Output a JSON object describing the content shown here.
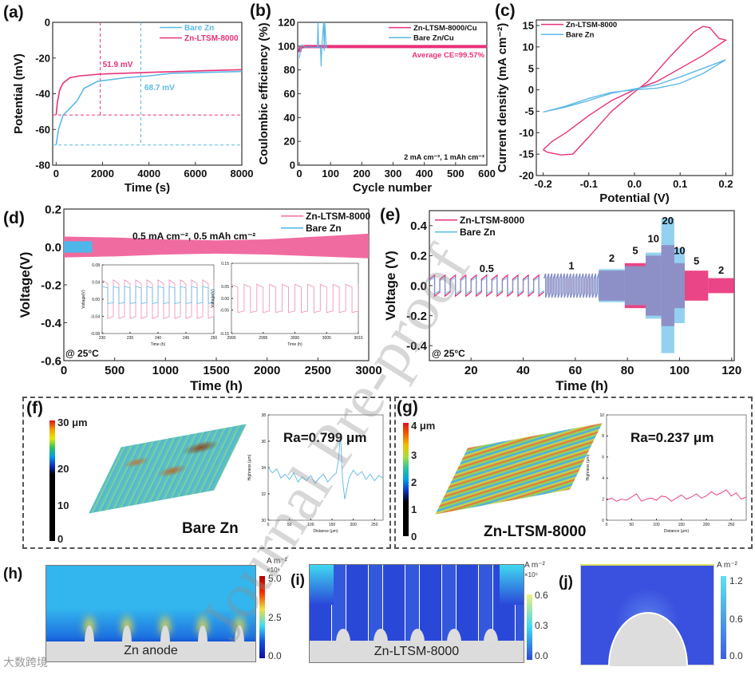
{
  "panel_labels": {
    "a": "(a)",
    "b": "(b)",
    "c": "(c)",
    "d": "(d)",
    "e": "(e)",
    "f": "(f)",
    "g": "(g)",
    "h": "(h)",
    "i": "(i)",
    "j": "(j)"
  },
  "colors": {
    "ltsm": "#e8317a",
    "bare": "#5bb8e8",
    "overlap": "#8c8ee6"
  },
  "watermark": "Journal Pre-proof",
  "corner_logo": "大数跨境",
  "chart_data": [
    {
      "panel": "a",
      "type": "line",
      "title": "",
      "xlabel": "Time (s)",
      "ylabel": "Potential (mV)",
      "xlim": [
        -150,
        8000
      ],
      "ylim": [
        -80,
        0
      ],
      "xticks": [
        0,
        2000,
        4000,
        6000,
        8000
      ],
      "yticks": [
        0,
        -20,
        -40,
        -60,
        -80
      ],
      "legend": "top-right",
      "series": [
        {
          "name": "Bare Zn",
          "color": "#5bb8e8",
          "x": [
            0,
            100,
            300,
            600,
            900,
            1200,
            1800,
            3000,
            4000,
            5000,
            8000
          ],
          "y": [
            -68.7,
            -60,
            -52,
            -48,
            -44,
            -37,
            -33,
            -31,
            -30,
            -28.5,
            -27.5
          ]
        },
        {
          "name": "Zn-LTSM-8000",
          "color": "#e8317a",
          "x": [
            0,
            50,
            150,
            300,
            600,
            1000,
            1900,
            4000,
            8000
          ],
          "y": [
            -51.9,
            -45,
            -38,
            -34,
            -31,
            -30,
            -29,
            -28,
            -26.5
          ]
        }
      ],
      "annotations": [
        {
          "text": "51.9 mV",
          "color": "#e8317a",
          "x": 1900,
          "y": -25
        },
        {
          "text": "68.7 mV",
          "color": "#5bb8e8",
          "x": 3700,
          "y": -38
        }
      ],
      "guides": [
        {
          "color": "#e8317a",
          "hy": -51.9,
          "vx": 1900
        },
        {
          "color": "#5bb8e8",
          "hy": -68.7,
          "vx": 3650
        }
      ]
    },
    {
      "panel": "b",
      "type": "line",
      "xlabel": "Cycle number",
      "ylabel": "Coulombic efficiency (%)",
      "xlim": [
        -5,
        600
      ],
      "ylim": [
        0,
        120
      ],
      "xticks": [
        0,
        100,
        200,
        300,
        400,
        500,
        600
      ],
      "yticks": [
        0,
        20,
        40,
        60,
        80,
        100,
        120
      ],
      "legend": "top-right",
      "series": [
        {
          "name": "Zn-LTSM-8000/Cu",
          "color": "#e8317a",
          "x": [
            1,
            3,
            5,
            10,
            20,
            50,
            100,
            200,
            300,
            400,
            500,
            600
          ],
          "y": [
            95,
            98,
            99.2,
            99.5,
            99.6,
            99.6,
            99.6,
            99.6,
            99.6,
            99.6,
            99.6,
            99.6
          ]
        },
        {
          "name": "Bare Zn/Cu",
          "color": "#5bb8e8",
          "x": [
            1,
            3,
            5,
            8,
            12,
            20,
            30,
            45,
            58,
            60,
            62,
            68,
            70,
            72,
            78,
            80,
            82,
            86,
            90
          ],
          "y": [
            90,
            96,
            99,
            101,
            100,
            99,
            99.5,
            99,
            99,
            120,
            99,
            99,
            83,
            99,
            120,
            96,
            120,
            99,
            99
          ]
        }
      ],
      "annotations": [
        {
          "text": "Average CE=99.57%",
          "color": "#e8317a"
        },
        {
          "text": "2 mA cm⁻², 1 mAh cm⁻²",
          "color": "#111"
        }
      ]
    },
    {
      "panel": "c",
      "type": "line",
      "xlabel": "Potential (V)",
      "ylabel": "Current density (mA cm⁻²)",
      "xlim": [
        -0.215,
        0.215
      ],
      "ylim": [
        -20,
        16.3
      ],
      "xticks": [
        -0.2,
        -0.1,
        0.0,
        0.1,
        0.2
      ],
      "xtick_labels": [
        "-0.2",
        "-0.1",
        "0.0",
        "0.1",
        "0.2"
      ],
      "yticks": [
        15,
        10,
        5,
        0,
        -5,
        -10,
        -15,
        -20
      ],
      "legend": "top-left",
      "series": [
        {
          "name": "Zn-LTSM-8000",
          "color": "#e8317a",
          "x": [
            -0.2,
            -0.19,
            -0.16,
            -0.135,
            -0.1,
            -0.05,
            0,
            0.03,
            0.08,
            0.13,
            0.15,
            0.165,
            0.185,
            0.2,
            0.15,
            0.1,
            0.05,
            0,
            -0.05,
            -0.1,
            -0.15,
            -0.18,
            -0.2
          ],
          "y": [
            -14,
            -14.6,
            -15.2,
            -15,
            -11,
            -5,
            -0.5,
            2,
            8,
            13.5,
            14.8,
            14.5,
            12,
            11.6,
            8,
            5,
            2,
            0,
            -2.5,
            -6,
            -10,
            -12,
            -14
          ]
        },
        {
          "name": "Bare Zn",
          "color": "#5bb8e8",
          "x": [
            -0.2,
            -0.15,
            -0.1,
            -0.05,
            0,
            0.05,
            0.1,
            0.15,
            0.2,
            0.15,
            0.1,
            0.05,
            0,
            -0.05,
            -0.1,
            -0.15,
            -0.2
          ],
          "y": [
            -5.2,
            -3.8,
            -2,
            -0.6,
            0,
            0.4,
            1.5,
            3.8,
            7,
            5,
            3,
            1.2,
            0.2,
            -0.8,
            -2.5,
            -4,
            -5.2
          ]
        }
      ]
    },
    {
      "panel": "d",
      "type": "area",
      "xlabel": "Time (h)",
      "ylabel": "Voltage(V)",
      "xlim": [
        0,
        3000
      ],
      "ylim": [
        -0.6,
        0.2
      ],
      "xticks": [
        0,
        500,
        1000,
        1500,
        2000,
        2500,
        3000
      ],
      "yticks": [
        0.2,
        0.0,
        -0.2,
        -0.4,
        -0.6
      ],
      "ytick_labels": [
        "0.2",
        "0.0",
        "-0.2",
        "-0.4",
        "-0.6"
      ],
      "legend": "top-right",
      "series": [
        {
          "name": "Zn-LTSM-8000",
          "color": "#f06ba0",
          "x": [
            0,
            500,
            1000,
            1500,
            2000,
            2500,
            3000
          ],
          "upper": [
            0.055,
            0.05,
            0.04,
            0.035,
            0.04,
            0.055,
            0.07
          ],
          "lower": [
            -0.055,
            -0.05,
            -0.04,
            -0.035,
            -0.04,
            -0.05,
            -0.06
          ]
        },
        {
          "name": "Bare Zn",
          "color": "#4fb6ea",
          "x": [
            0,
            280
          ],
          "upper": [
            0.03,
            0.03
          ],
          "lower": [
            -0.03,
            -0.03
          ]
        }
      ],
      "annotations": [
        {
          "text": "0.5 mA cm⁻², 0.5 mAh cm⁻²"
        },
        {
          "text": "@ 25°C"
        }
      ],
      "insets": [
        {
          "xlabel": "Time (h)",
          "ylabel": "Voltage(V)",
          "xlim": [
            230,
            250
          ],
          "ylim": [
            -0.08,
            0.08
          ],
          "xticks": [
            230,
            235,
            240,
            245,
            250
          ],
          "yticks": [
            0.08,
            0.04,
            0.0,
            -0.04,
            -0.08
          ],
          "ytick_labels": [
            "0.08",
            "0.04",
            "0.00",
            "-0.04",
            "-0.08"
          ],
          "series": [
            {
              "name": "Zn-LTSM-8000",
              "color": "#f08ab0",
              "amp": 0.045,
              "period": 2
            },
            {
              "name": "Bare Zn",
              "color": "#5bb8e8",
              "amp": 0.02,
              "period": 2
            }
          ]
        },
        {
          "xlabel": "Time (h)",
          "ylabel": "Voltage(V)",
          "xlim": [
            2990,
            3010
          ],
          "ylim": [
            -0.15,
            0.15
          ],
          "xticks": [
            2990,
            2995,
            3000,
            3005,
            3010
          ],
          "yticks": [
            0.15,
            0.05,
            0.0,
            -0.05,
            -0.15
          ],
          "ytick_labels": [
            "0.15",
            "0.05",
            "0.00",
            "-0.05",
            "-0.15"
          ],
          "series": [
            {
              "name": "Zn-LTSM-8000",
              "color": "#f08ab0",
              "amp": 0.06,
              "period": 2
            }
          ]
        }
      ]
    },
    {
      "panel": "e",
      "type": "line",
      "xlabel": "Time (h)",
      "ylabel": "Voltage (V)",
      "xlim": [
        4,
        121
      ],
      "ylim": [
        -0.5,
        0.5
      ],
      "xticks": [
        20,
        40,
        60,
        80,
        100,
        120
      ],
      "yticks": [
        0.4,
        0.2,
        0.0,
        -0.2,
        -0.4
      ],
      "ytick_labels": [
        "0.4",
        "0.2",
        "0.0",
        "-0.2",
        "-0.4"
      ],
      "legend": "top-left",
      "series_names": [
        "Zn-LTSM-8000",
        "Bare Zn"
      ],
      "segments": [
        {
          "rate": "0.5",
          "start": 4,
          "end": 48,
          "ltsm": 0.07,
          "bare": 0.055,
          "label_y": 0.09
        },
        {
          "rate": "1",
          "start": 48,
          "end": 69,
          "ltsm": 0.08,
          "bare": 0.08,
          "label_y": 0.11
        },
        {
          "rate": "2",
          "start": 69,
          "end": 79,
          "ltsm": 0.1,
          "bare": 0.11,
          "label_y": 0.16
        },
        {
          "rate": "5",
          "start": 79,
          "end": 87,
          "ltsm": 0.15,
          "bare": 0.13,
          "label_y": 0.21
        },
        {
          "rate": "10",
          "start": 87,
          "end": 93,
          "ltsm": 0.2,
          "bare": 0.22,
          "label_y": 0.29
        },
        {
          "rate": "20",
          "start": 93,
          "end": 98,
          "ltsm": 0.27,
          "bare": 0.45,
          "label_y": 0.41
        },
        {
          "rate": "10",
          "start": 98,
          "end": 102,
          "ltsm": 0.15,
          "bare": 0.25,
          "label_y": 0.21
        },
        {
          "rate": "5",
          "start": 102,
          "end": 111,
          "ltsm": 0.1,
          "bare": 0.0,
          "label_y": 0.14
        },
        {
          "rate": "2",
          "start": 111,
          "end": 121,
          "ltsm": 0.05,
          "bare": 0.0,
          "label_y": 0.08
        }
      ],
      "annotations": [
        {
          "text": "@ 25°C"
        }
      ]
    },
    {
      "panel": "f",
      "type": "line",
      "title": "Bare Zn",
      "xlabel": "Distance (μm)",
      "ylabel": "Highness (μm)",
      "xlim": [
        0,
        270
      ],
      "ylim": [
        30,
        38
      ],
      "xticks": [
        0,
        50,
        100,
        150,
        200,
        250
      ],
      "yticks": [
        30,
        32,
        34,
        36,
        38
      ],
      "ra": "Ra=0.799 μm",
      "series": [
        {
          "name": "profile",
          "color": "#5bb8e8",
          "x": [
            0,
            10,
            20,
            30,
            40,
            50,
            60,
            70,
            80,
            90,
            100,
            110,
            120,
            130,
            140,
            150,
            160,
            165,
            170,
            175,
            180,
            190,
            200,
            210,
            220,
            230,
            240,
            250,
            260,
            270
          ],
          "y": [
            34,
            33.6,
            33.9,
            33.2,
            33.5,
            33.1,
            33.6,
            32.9,
            33.3,
            33,
            33.4,
            32.8,
            33.2,
            33.5,
            32.9,
            33.3,
            33.6,
            34.5,
            36.5,
            33,
            31.6,
            33.2,
            33.8,
            33.4,
            33.7,
            33.1,
            33.5,
            33,
            33.4,
            33.2
          ]
        }
      ],
      "colorbar": {
        "unit": "30 μm",
        "labels": [
          "20",
          "10",
          "0"
        ]
      }
    },
    {
      "panel": "g",
      "type": "line",
      "title": "Zn-LTSM-8000",
      "xlabel": "Distance (μm)",
      "ylabel": "Highness (μm)",
      "xlim": [
        0,
        280
      ],
      "ylim": [
        0,
        10
      ],
      "xticks": [
        0,
        50,
        100,
        150,
        200,
        250
      ],
      "yticks": [
        0,
        2,
        4,
        6,
        8,
        10
      ],
      "ra": "Ra=0.237 μm",
      "series": [
        {
          "name": "profile",
          "color": "#e8317a",
          "x": [
            0,
            10,
            20,
            30,
            40,
            50,
            60,
            70,
            80,
            90,
            100,
            110,
            120,
            130,
            140,
            150,
            160,
            170,
            180,
            190,
            200,
            210,
            220,
            230,
            240,
            250,
            260,
            270,
            280
          ],
          "y": [
            1.9,
            2.1,
            1.8,
            2,
            1.9,
            2.2,
            2.5,
            1.8,
            2,
            2.1,
            1.9,
            2.3,
            2.2,
            1.8,
            2.1,
            2.4,
            2,
            2.2,
            2.5,
            2.1,
            2.3,
            2.7,
            2.4,
            2.6,
            2.9,
            2.3,
            2.6,
            2.0,
            2.2
          ]
        }
      ],
      "colorbar": {
        "unit": "4 μm",
        "labels": [
          "3",
          "2",
          "1",
          "0"
        ]
      }
    },
    {
      "panel": "h",
      "type": "heatmap",
      "title": "Zn anode",
      "colorbar": {
        "unit": "A m⁻²",
        "scale": "×10⁶",
        "labels": [
          "5.0",
          "2.5",
          "0.0"
        ],
        "range": [
          0,
          5.0
        ]
      }
    },
    {
      "panel": "i",
      "type": "heatmap",
      "title": "Zn-LTSM-8000",
      "colorbar": {
        "unit": "A m⁻²",
        "scale": "×10⁶",
        "labels": [
          "0.6",
          "0.3",
          "0.0"
        ],
        "range": [
          0,
          0.6
        ]
      }
    },
    {
      "panel": "j",
      "type": "heatmap",
      "title": "",
      "colorbar": {
        "unit": "A m⁻²",
        "scale": "",
        "labels": [
          "1.2",
          "0.6",
          "0.0"
        ],
        "range": [
          0,
          1.2
        ]
      }
    }
  ]
}
